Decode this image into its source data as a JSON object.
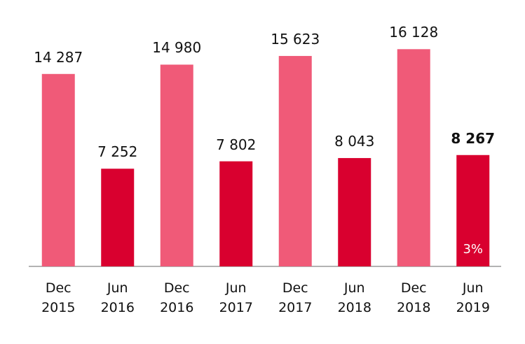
{
  "chart_data": {
    "type": "bar",
    "categories": [
      "Dec 2015",
      "Jun 2016",
      "Dec 2016",
      "Jun 2017",
      "Dec 2017",
      "Jun 2018",
      "Dec 2018",
      "Jun 2019"
    ],
    "values": [
      14287,
      7252,
      14980,
      7802,
      15623,
      8043,
      16128,
      8267
    ],
    "value_labels": [
      "14 287",
      "7 252",
      "14 980",
      "7 802",
      "15 623",
      "8 043",
      "16 128",
      "8 267"
    ],
    "colors": [
      "#f05a78",
      "#d9002f",
      "#f05a78",
      "#d9002f",
      "#f05a78",
      "#d9002f",
      "#f05a78",
      "#d9002f"
    ],
    "emphasized": [
      7
    ],
    "annotation": {
      "text": "3%",
      "index": 7
    },
    "ylim": [
      0,
      19000
    ]
  }
}
